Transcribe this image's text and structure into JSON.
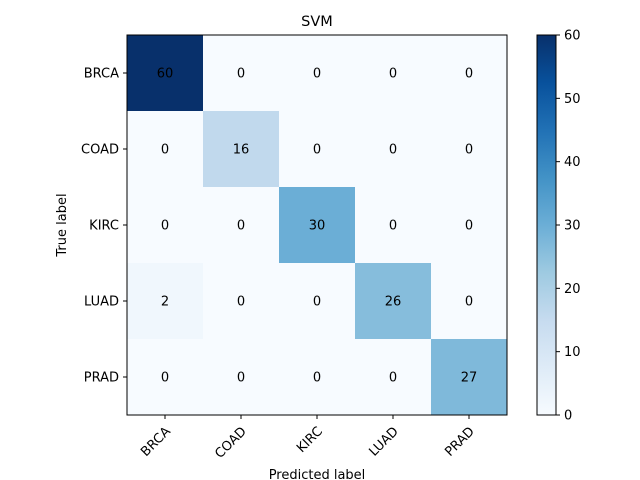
{
  "chart_data": {
    "type": "heatmap",
    "title": "SVM",
    "xlabel": "Predicted label",
    "ylabel": "True label",
    "x_categories": [
      "BRCA",
      "COAD",
      "KIRC",
      "LUAD",
      "PRAD"
    ],
    "y_categories": [
      "BRCA",
      "COAD",
      "KIRC",
      "LUAD",
      "PRAD"
    ],
    "values": [
      [
        60,
        0,
        0,
        0,
        0
      ],
      [
        0,
        16,
        0,
        0,
        0
      ],
      [
        0,
        0,
        30,
        0,
        0
      ],
      [
        2,
        0,
        0,
        26,
        0
      ],
      [
        0,
        0,
        0,
        0,
        27
      ]
    ],
    "vmin": 0,
    "vmax": 60,
    "colormap": "Blues",
    "colorbar_ticks": [
      0,
      10,
      20,
      30,
      40,
      50,
      60
    ],
    "grid": false,
    "text_color_dark": "#000000",
    "text_color_light": "#ffffff"
  }
}
